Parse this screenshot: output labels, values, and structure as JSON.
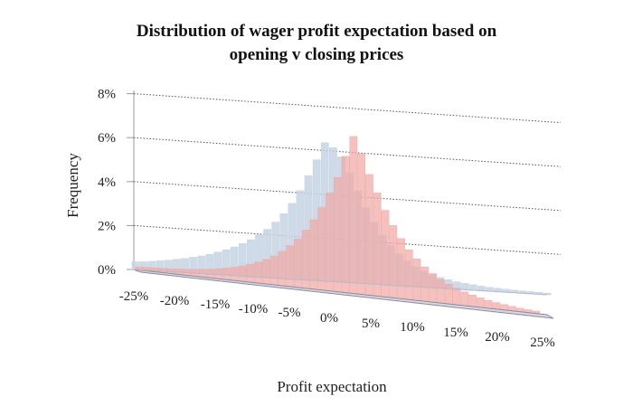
{
  "chart_data": {
    "type": "bar",
    "title_line1": "Distribution of  wager profit expectation based on",
    "title_line2": "opening v closing prices",
    "xlabel": "Profit expectation",
    "ylabel": "Frequency",
    "ylim": [
      0,
      8
    ],
    "y_ticks": [
      "0%",
      "2%",
      "4%",
      "6%",
      "8%"
    ],
    "x_ticks": [
      "-25%",
      "-20%",
      "-15%",
      "-10%",
      "-5%",
      "0%",
      "5%",
      "10%",
      "15%",
      "20%",
      "25%"
    ],
    "grid": true,
    "x": [
      -25,
      -24,
      -23,
      -22,
      -21,
      -20,
      -19,
      -18,
      -17,
      -16,
      -15,
      -14,
      -13,
      -12,
      -11,
      -10,
      -9,
      -8,
      -7,
      -6,
      -5,
      -4,
      -3,
      -2,
      -1,
      0,
      1,
      2,
      3,
      4,
      5,
      6,
      7,
      8,
      9,
      10,
      11,
      12,
      13,
      14,
      15,
      16,
      17,
      18,
      19,
      20,
      21,
      22,
      23,
      24,
      25
    ],
    "series": [
      {
        "color": "#c6d3e3",
        "values": [
          0.35,
          0.38,
          0.42,
          0.47,
          0.52,
          0.58,
          0.64,
          0.72,
          0.8,
          0.9,
          1.02,
          1.15,
          1.3,
          1.48,
          1.68,
          1.92,
          2.2,
          2.55,
          2.95,
          3.45,
          4.05,
          4.75,
          5.5,
          6.3,
          6.1,
          5.7,
          5.0,
          4.2,
          3.45,
          2.8,
          2.25,
          1.8,
          1.45,
          1.15,
          0.92,
          0.74,
          0.6,
          0.49,
          0.41,
          0.34,
          0.29,
          0.25,
          0.21,
          0.18,
          0.16,
          0.14,
          0.12,
          0.11,
          0.1,
          0.09,
          0.08
        ]
      },
      {
        "color": "#f0a9a6",
        "values": [
          0.2,
          0.22,
          0.24,
          0.26,
          0.28,
          0.31,
          0.34,
          0.38,
          0.42,
          0.47,
          0.53,
          0.6,
          0.68,
          0.78,
          0.9,
          1.04,
          1.2,
          1.4,
          1.65,
          1.95,
          2.3,
          2.75,
          3.25,
          3.85,
          4.55,
          5.3,
          6.3,
          7.25,
          6.5,
          5.6,
          4.8,
          4.05,
          3.4,
          2.85,
          2.38,
          2.0,
          1.68,
          1.42,
          1.2,
          1.02,
          0.87,
          0.75,
          0.65,
          0.56,
          0.49,
          0.43,
          0.38,
          0.34,
          0.3,
          0.27,
          0.25
        ]
      }
    ]
  }
}
